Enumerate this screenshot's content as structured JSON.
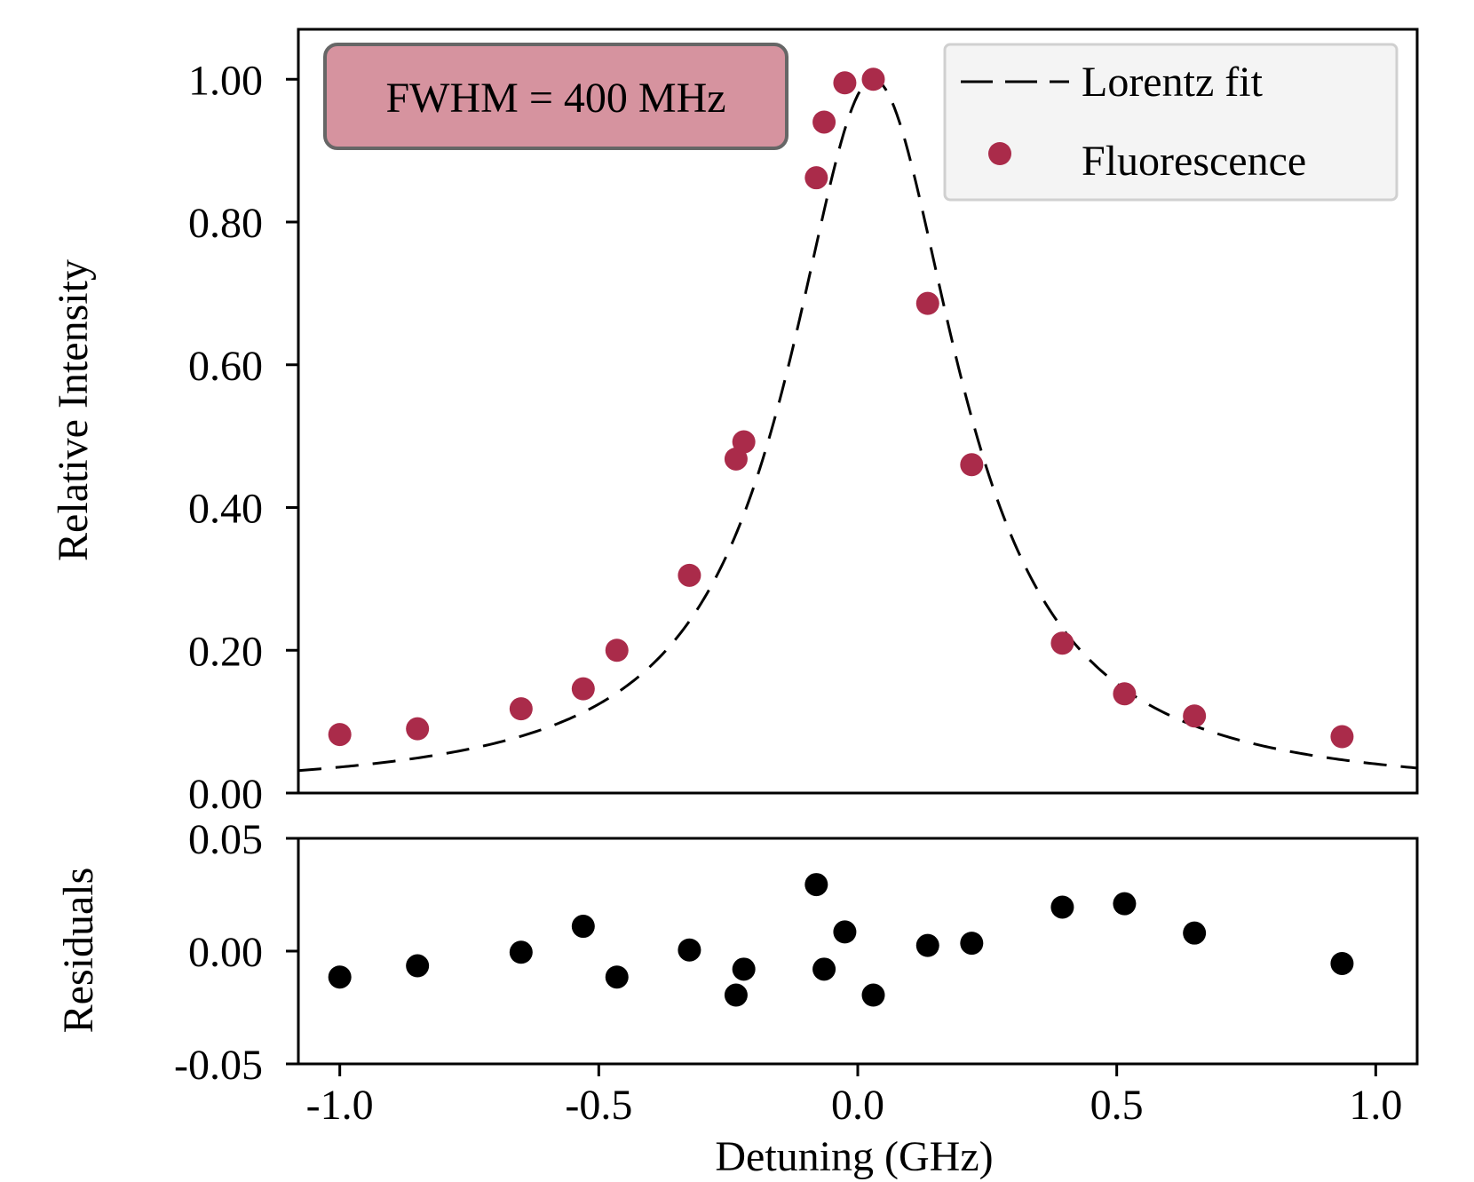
{
  "chart_data": [
    {
      "type": "scatter",
      "panel": "main",
      "ylabel": "Relative Intensity",
      "xlim": [
        -1.08,
        1.08
      ],
      "ylim": [
        0.0,
        1.07
      ],
      "yticks": [
        0.0,
        0.2,
        0.4,
        0.6,
        0.8,
        1.0
      ],
      "ytick_labels": [
        "0.00",
        "0.20",
        "0.40",
        "0.60",
        "0.80",
        "1.00"
      ],
      "annotation": "FWHM = 400 MHz",
      "legend": {
        "placement": "top-right",
        "entries": [
          "Lorentz fit",
          "Fluorescence"
        ]
      },
      "fit": {
        "name": "Lorentz fit",
        "model": "lorentzian",
        "center": 0.03,
        "fwhm": 0.4,
        "amplitude": 1.0,
        "style": "dashed",
        "color": "#000000"
      },
      "series": [
        {
          "name": "Fluorescence",
          "color": "#aa2b4a",
          "x": [
            -1.0,
            -0.85,
            -0.65,
            -0.53,
            -0.465,
            -0.325,
            -0.235,
            -0.22,
            -0.08,
            -0.065,
            -0.025,
            0.03,
            0.135,
            0.22,
            0.395,
            0.515,
            0.65,
            0.935
          ],
          "y": [
            0.082,
            0.09,
            0.118,
            0.146,
            0.2,
            0.305,
            0.468,
            0.492,
            0.862,
            0.94,
            0.995,
            1.0,
            0.686,
            0.46,
            0.21,
            0.139,
            0.108,
            0.079
          ]
        }
      ]
    },
    {
      "type": "scatter",
      "panel": "residuals",
      "xlabel": "Detuning (GHz)",
      "ylabel": "Residuals",
      "xlim": [
        -1.08,
        1.08
      ],
      "ylim": [
        -0.05,
        0.05
      ],
      "yticks": [
        -0.05,
        0.0,
        0.05
      ],
      "ytick_labels": [
        "-0.05",
        "0.00",
        "0.05"
      ],
      "xticks": [
        -1.0,
        -0.5,
        0.0,
        0.5,
        1.0
      ],
      "xtick_labels": [
        "-1.0",
        "-0.5",
        "0.0",
        "0.5",
        "1.0"
      ],
      "series": [
        {
          "color": "#000000",
          "x": [
            -1.0,
            -0.85,
            -0.65,
            -0.53,
            -0.465,
            -0.325,
            -0.235,
            -0.22,
            -0.08,
            -0.065,
            -0.025,
            0.03,
            0.135,
            0.22,
            0.395,
            0.515,
            0.65,
            0.935
          ],
          "y": [
            -0.0115,
            -0.0065,
            -0.0005,
            0.011,
            -0.0115,
            0.0005,
            -0.0195,
            -0.008,
            0.0295,
            -0.008,
            0.0085,
            -0.0195,
            0.0025,
            0.0035,
            0.0195,
            0.021,
            0.008,
            -0.0055
          ]
        }
      ]
    }
  ]
}
